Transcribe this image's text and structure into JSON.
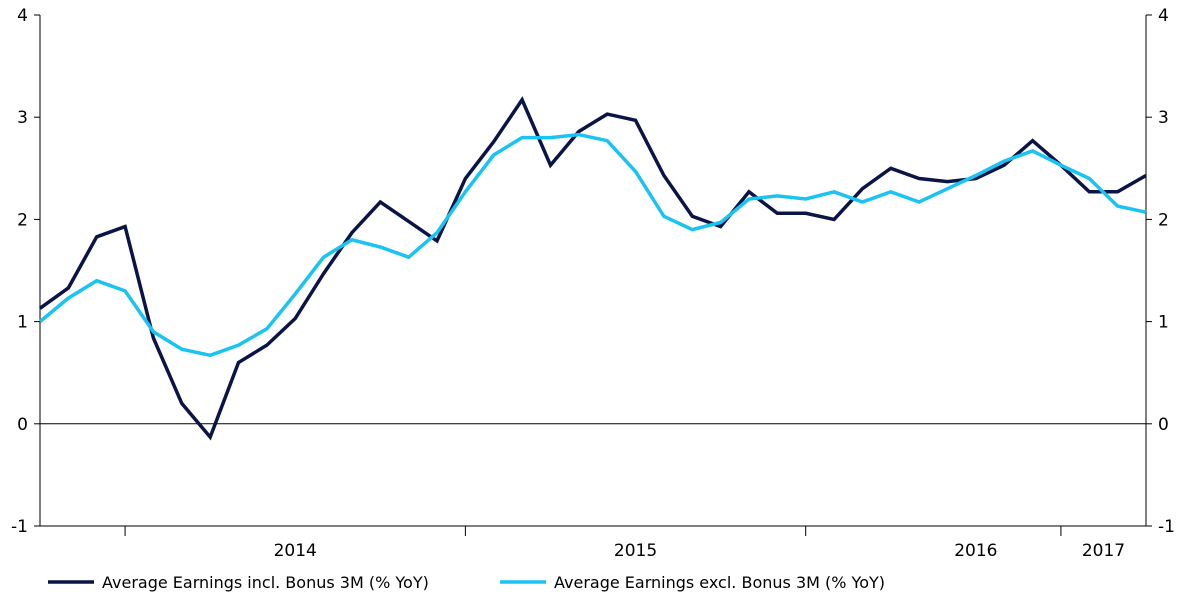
{
  "chart_data": {
    "type": "line",
    "title": "",
    "xlabel": "",
    "ylabel": "",
    "ylim": [
      -1,
      4
    ],
    "yticks": [
      -1,
      0,
      1,
      2,
      3,
      4
    ],
    "x_axis": {
      "ticks": [
        "2014",
        "2015",
        "2016",
        "2017"
      ],
      "start_index": 0,
      "end_index": 39,
      "separators": [
        3,
        15,
        27,
        36
      ],
      "label_positions": [
        9,
        21,
        33,
        37.5
      ]
    },
    "legend_position": "bottom",
    "grid": false,
    "series": [
      {
        "name": "Average Earnings incl. Bonus 3M (% YoY)",
        "color": "#0b1446",
        "values": [
          1.13,
          1.33,
          1.83,
          1.93,
          0.84,
          0.2,
          -0.13,
          0.6,
          0.77,
          1.03,
          1.47,
          1.87,
          2.17,
          1.98,
          1.79,
          2.4,
          2.76,
          3.17,
          2.53,
          2.86,
          3.03,
          2.97,
          2.43,
          2.03,
          1.93,
          2.27,
          2.06,
          2.06,
          2.0,
          2.3,
          2.5,
          2.4,
          2.37,
          2.4,
          2.53,
          2.77,
          2.53,
          2.27,
          2.27,
          2.43
        ]
      },
      {
        "name": "Average Earnings excl. Bonus 3M (% YoY)",
        "color": "#19c3f2",
        "values": [
          1.0,
          1.23,
          1.4,
          1.3,
          0.9,
          0.73,
          0.67,
          0.77,
          0.93,
          1.27,
          1.63,
          1.8,
          1.73,
          1.63,
          1.87,
          2.27,
          2.63,
          2.8,
          2.8,
          2.83,
          2.77,
          2.47,
          2.03,
          1.9,
          1.97,
          2.2,
          2.23,
          2.2,
          2.27,
          2.17,
          2.27,
          2.17,
          2.3,
          2.43,
          2.57,
          2.67,
          2.53,
          2.4,
          2.13,
          2.07
        ]
      }
    ]
  }
}
